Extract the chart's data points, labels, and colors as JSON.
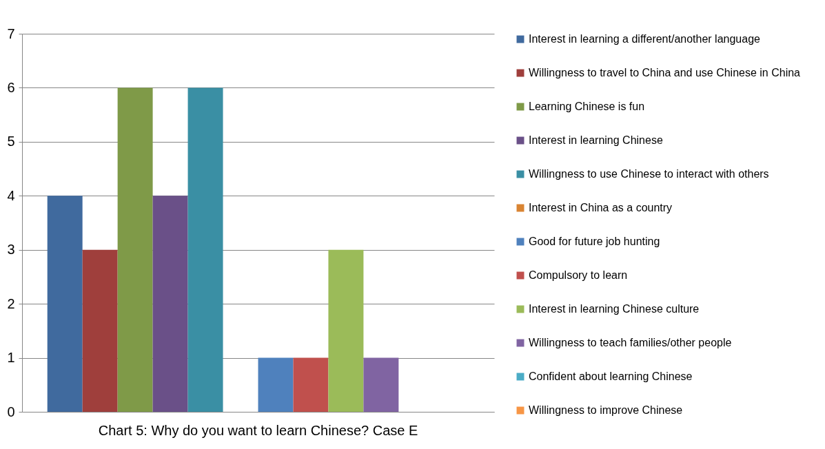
{
  "chart_data": {
    "type": "bar",
    "title": "Chart 5: Why do you want to learn Chinese? Case E",
    "categories": [
      null
    ],
    "series": [
      {
        "name": "Interest in learning a different/another language",
        "color": "#406a9e",
        "values": [
          4
        ]
      },
      {
        "name": "Willingness to travel to China and use Chinese in China",
        "color": "#9f3f3c",
        "values": [
          3
        ]
      },
      {
        "name": "Learning Chinese is fun",
        "color": "#7f9a48",
        "values": [
          6
        ]
      },
      {
        "name": "Interest in learning Chinese",
        "color": "#6a5088",
        "values": [
          4
        ]
      },
      {
        "name": "Willingness to use Chinese to interact with others",
        "color": "#3a8fa4",
        "values": [
          6
        ]
      },
      {
        "name": "Interest in China as a country",
        "color": "#d98432",
        "values": [
          0
        ]
      },
      {
        "name": "Good for future job hunting",
        "color": "#4f81bd",
        "values": [
          1
        ]
      },
      {
        "name": "Compulsory to learn",
        "color": "#c0504d",
        "values": [
          1
        ]
      },
      {
        "name": "Interest in learning Chinese culture",
        "color": "#9bbb59",
        "values": [
          3
        ]
      },
      {
        "name": "Willingness to teach families/other people",
        "color": "#8064a2",
        "values": [
          1
        ]
      },
      {
        "name": "Confident about learning Chinese",
        "color": "#4bacc6",
        "values": [
          0
        ]
      },
      {
        "name": "Willingness to improve Chinese",
        "color": "#f79646",
        "values": [
          0
        ]
      }
    ],
    "ylim": [
      0,
      7
    ],
    "yticks": [
      0,
      1,
      2,
      3,
      4,
      5,
      6,
      7
    ],
    "grid": "y",
    "legend": "right",
    "tick_labels": "y"
  }
}
